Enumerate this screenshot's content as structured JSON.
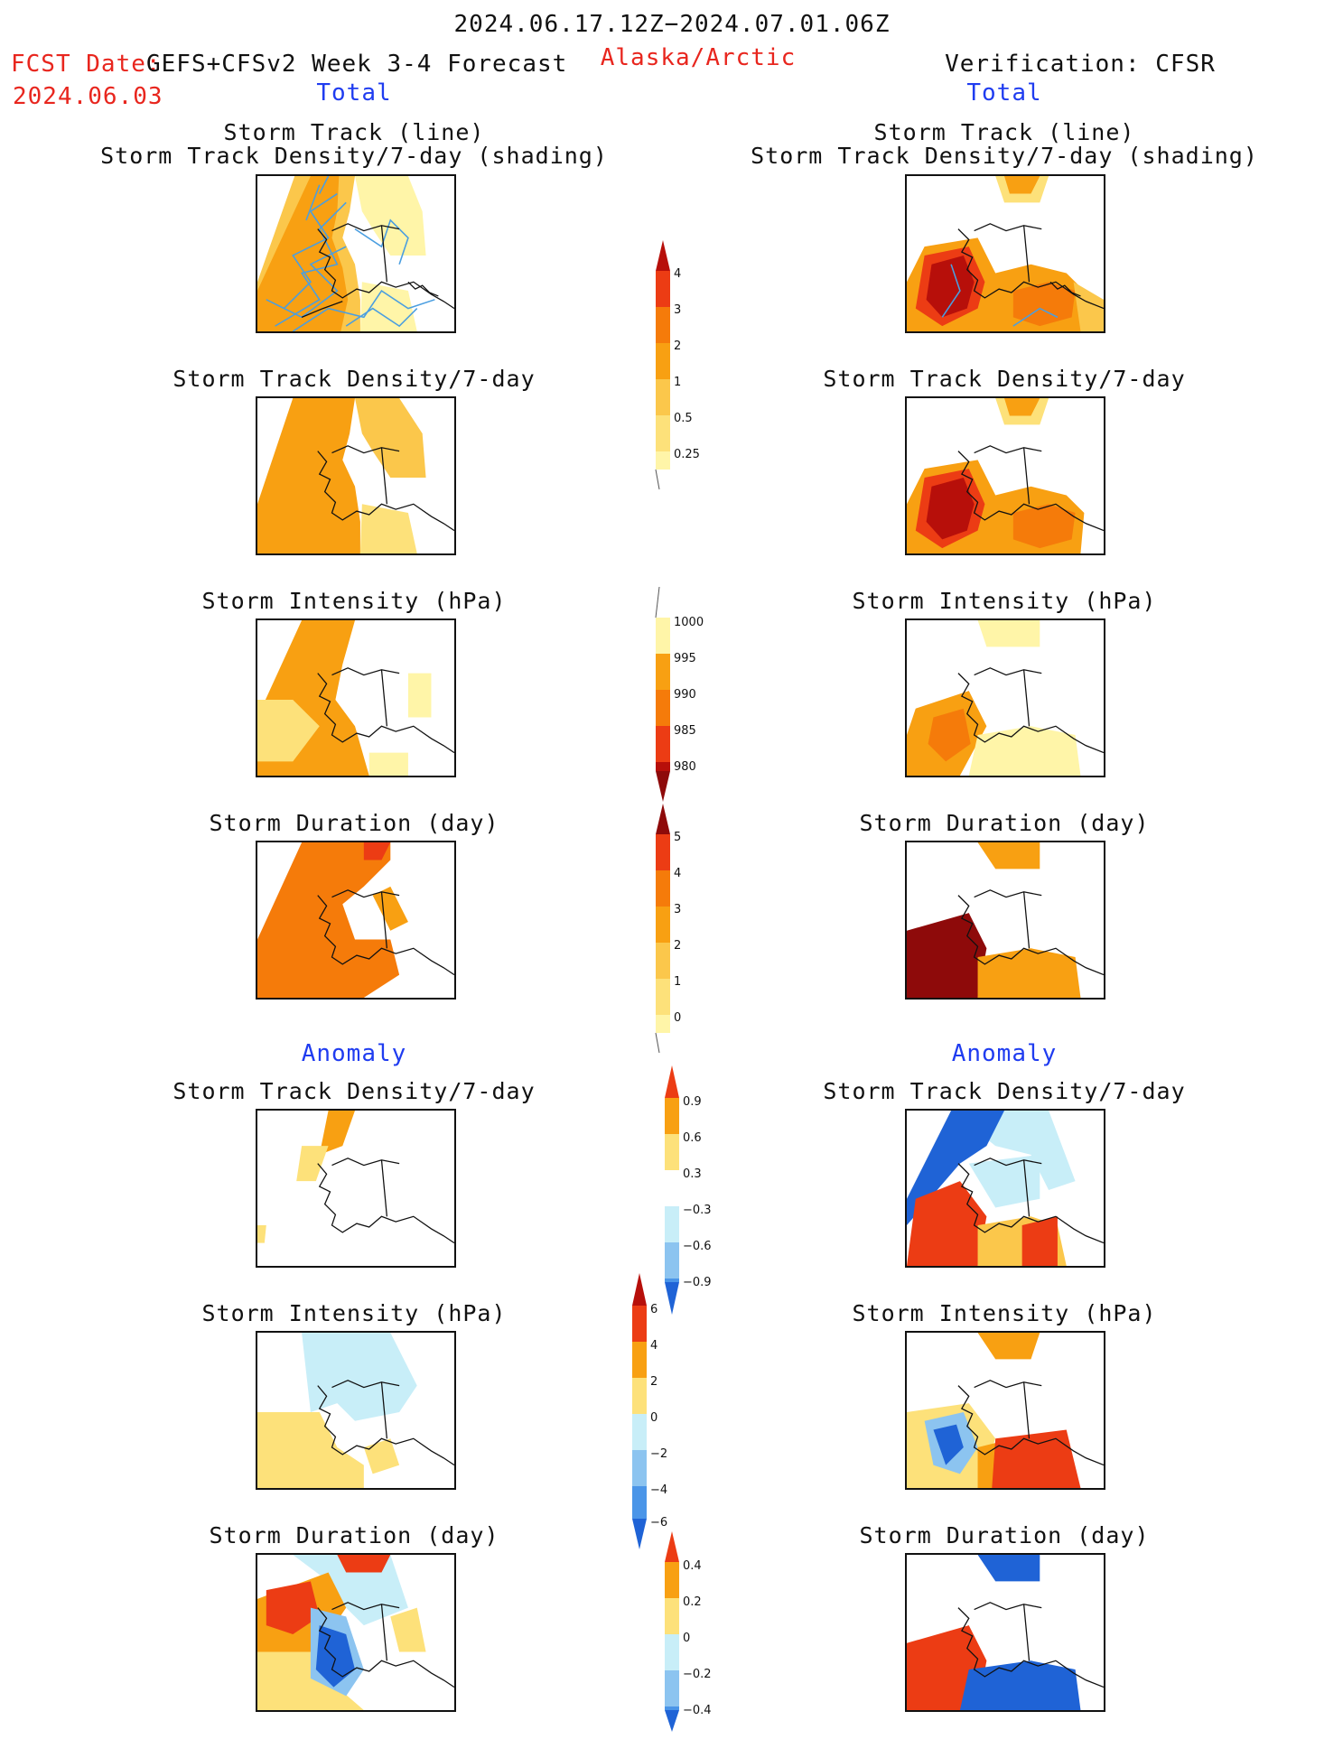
{
  "header": {
    "period": "2024.06.17.12Z−2024.07.01.06Z",
    "fcst_date_label": "FCST Date:",
    "forecast_name": "GEFS+CFSv2 Week 3-4 Forecast",
    "fcst_date": "2024.06.03",
    "region": "Alaska/Arctic",
    "verification": "Verification: CFSR",
    "left_section": "Total",
    "right_section": "Total"
  },
  "sections": {
    "anomaly_left": "Anomaly",
    "anomaly_right": "Anomaly"
  },
  "panel_titles": {
    "track_line": "Storm Track (line)",
    "track_shading": "Storm Track Density/7-day (shading)",
    "density": "Storm Track Density/7-day",
    "intensity": "Storm Intensity (hPa)",
    "duration": "Storm Duration (day)"
  },
  "colors": {
    "c_lightyellow": "#fff5a8",
    "c_yellow": "#fde17a",
    "c_lightorange": "#fbc74b",
    "c_orange": "#f8a012",
    "c_darkorange": "#f57b0a",
    "c_red": "#ec3c14",
    "c_darkred": "#b70f0a",
    "c_maroon": "#8e0a0a",
    "c_lightblue": "#c8eef8",
    "c_midblue": "#8cc4f0",
    "c_blue": "#4a95e8",
    "c_darkblue": "#1f63d6",
    "track_line": "#4a9ee0"
  },
  "chart_data": [
    {
      "type": "heatmap",
      "name": "colorbar_density_total",
      "tick_labels": [
        "4",
        "3",
        "2",
        "1",
        "0.5",
        "0.25"
      ]
    },
    {
      "type": "heatmap",
      "name": "colorbar_intensity_total",
      "tick_labels": [
        "1000",
        "995",
        "990",
        "985",
        "980"
      ]
    },
    {
      "type": "heatmap",
      "name": "colorbar_duration_total",
      "tick_labels": [
        "5",
        "4",
        "3",
        "2",
        "1",
        "0"
      ]
    },
    {
      "type": "heatmap",
      "name": "colorbar_density_anomaly",
      "tick_labels": [
        "0.9",
        "0.6",
        "0.3",
        "−0.3",
        "−0.6",
        "−0.9"
      ]
    },
    {
      "type": "heatmap",
      "name": "colorbar_intensity_anomaly",
      "tick_labels": [
        "6",
        "4",
        "2",
        "0",
        "−2",
        "−4",
        "−6"
      ]
    },
    {
      "type": "heatmap",
      "name": "colorbar_duration_anomaly",
      "tick_labels": [
        "0.4",
        "0.2",
        "0",
        "−0.2",
        "−0.4"
      ]
    }
  ]
}
